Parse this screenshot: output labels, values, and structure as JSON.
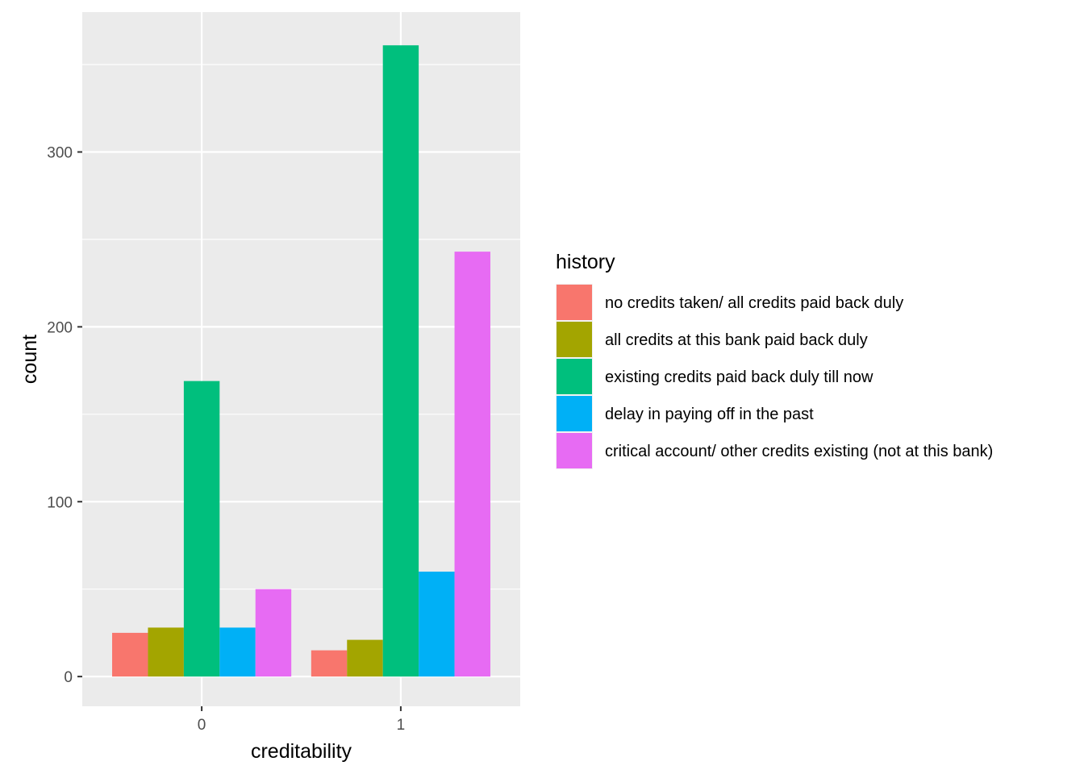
{
  "chart_data": {
    "type": "bar",
    "title": "",
    "xlabel": "creditability",
    "ylabel": "count",
    "categories": [
      "0",
      "1"
    ],
    "ylim": [
      -17,
      380
    ],
    "yticks": [
      0,
      100,
      200,
      300
    ],
    "grid": true,
    "legend_title": "history",
    "legend_position": "right",
    "series": [
      {
        "name": "no credits taken/ all credits paid back duly",
        "color": "#F8766D",
        "values": [
          25,
          15
        ]
      },
      {
        "name": "all credits at this bank paid back duly",
        "color": "#A3A500",
        "values": [
          28,
          21
        ]
      },
      {
        "name": "existing credits paid back duly till now",
        "color": "#00BF7D",
        "values": [
          169,
          361
        ]
      },
      {
        "name": "delay in paying off in the past",
        "color": "#00B0F6",
        "values": [
          28,
          60
        ]
      },
      {
        "name": "critical account/ other credits existing (not at this bank)",
        "color": "#E76BF3",
        "values": [
          50,
          243
        ]
      }
    ]
  }
}
